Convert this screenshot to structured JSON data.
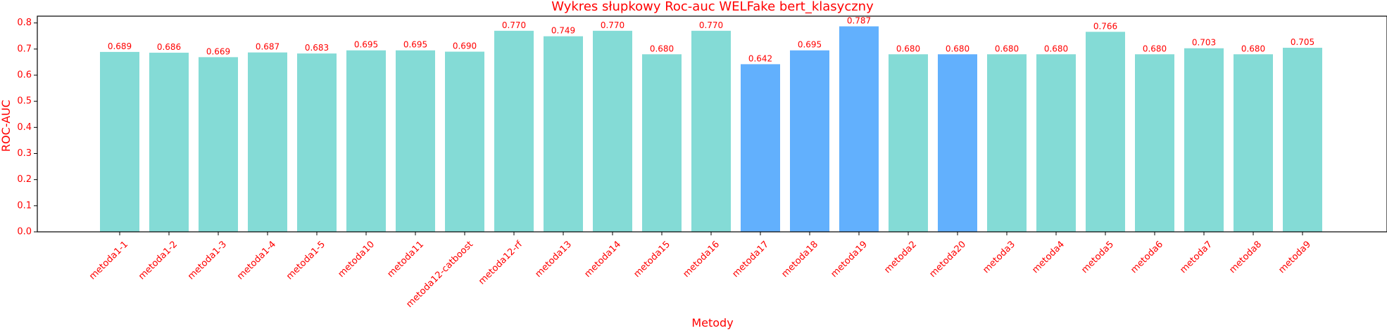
{
  "chart_data": {
    "type": "bar",
    "title": "Wykres słupkowy Roc-auc WELFake bert_klasyczny",
    "xlabel": "Metody",
    "ylabel": "ROC-AUC",
    "categories": [
      "metoda1-1",
      "metoda1-2",
      "metoda1-3",
      "metoda1-4",
      "metoda1-5",
      "metoda10",
      "metoda11",
      "metoda12-catboost",
      "metoda12-rf",
      "metoda13",
      "metoda14",
      "metoda15",
      "metoda16",
      "metoda17",
      "metoda18",
      "metoda19",
      "metoda2",
      "metoda20",
      "metoda3",
      "metoda4",
      "metoda5",
      "metoda6",
      "metoda7",
      "metoda8",
      "metoda9"
    ],
    "values": [
      0.689,
      0.686,
      0.669,
      0.687,
      0.683,
      0.695,
      0.695,
      0.69,
      0.77,
      0.749,
      0.77,
      0.68,
      0.77,
      0.642,
      0.695,
      0.787,
      0.68,
      0.68,
      0.68,
      0.68,
      0.766,
      0.68,
      0.703,
      0.68,
      0.705
    ],
    "value_labels": [
      "0.689",
      "0.686",
      "0.669",
      "0.687",
      "0.683",
      "0.695",
      "0.695",
      "0.690",
      "0.770",
      "0.749",
      "0.770",
      "0.680",
      "0.770",
      "0.642",
      "0.695",
      "0.787",
      "0.680",
      "0.680",
      "0.680",
      "0.680",
      "0.766",
      "0.680",
      "0.703",
      "0.680",
      "0.705"
    ],
    "bar_colors": [
      "#84dbd6",
      "#84dbd6",
      "#84dbd6",
      "#84dbd6",
      "#84dbd6",
      "#84dbd6",
      "#84dbd6",
      "#84dbd6",
      "#84dbd6",
      "#84dbd6",
      "#84dbd6",
      "#84dbd6",
      "#84dbd6",
      "#62b0fd",
      "#62b0fd",
      "#62b0fd",
      "#84dbd6",
      "#62b0fd",
      "#84dbd6",
      "#84dbd6",
      "#84dbd6",
      "#84dbd6",
      "#84dbd6",
      "#84dbd6",
      "#84dbd6"
    ],
    "yticks": [
      0.0,
      0.1,
      0.2,
      0.3,
      0.4,
      0.5,
      0.6,
      0.7,
      0.8
    ],
    "ytick_labels": [
      "0.0",
      "0.1",
      "0.2",
      "0.3",
      "0.4",
      "0.5",
      "0.6",
      "0.7",
      "0.8"
    ],
    "ylim": [
      0,
      0.826
    ],
    "grid": false,
    "legend": "none",
    "label_color": "#ff0000"
  }
}
